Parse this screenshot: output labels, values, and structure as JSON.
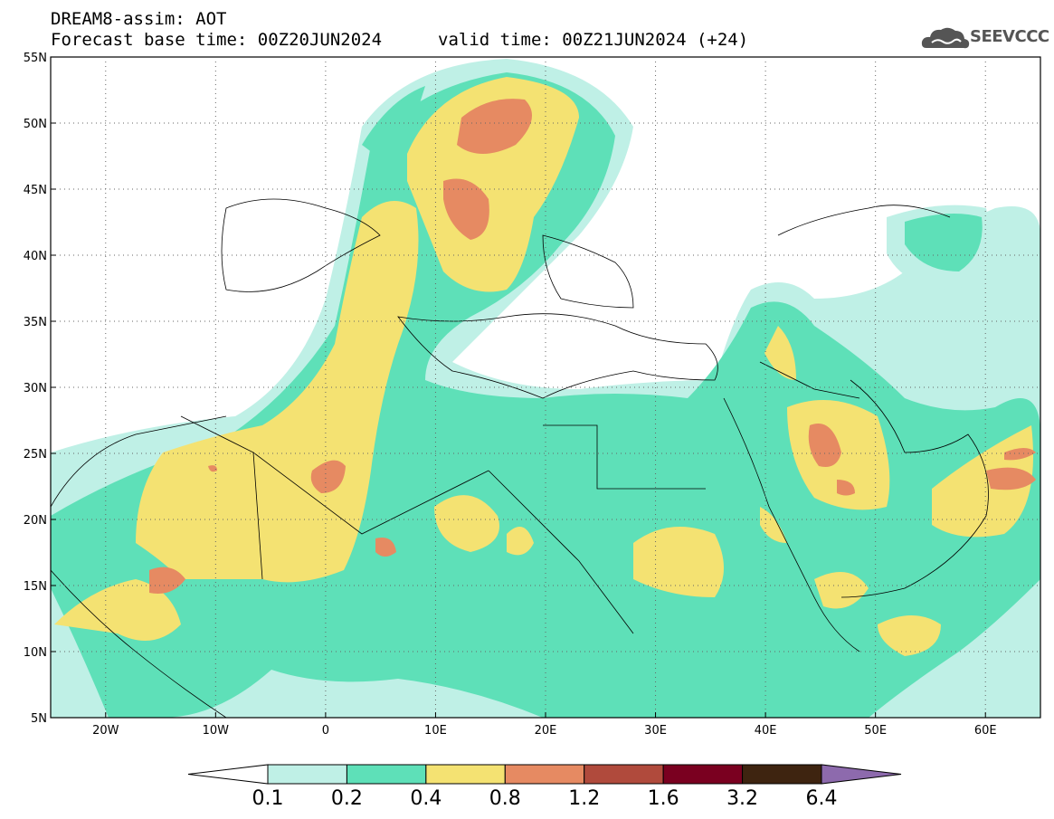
{
  "header": {
    "line1": "DREAM8-assim: AOT",
    "line2_left": "Forecast base time: 00Z20JUN2024",
    "line2_right": "valid time: 00Z21JUN2024 (+24)"
  },
  "logo": {
    "text": "SEEVCCC",
    "icon": "cloud-icon"
  },
  "map": {
    "variable": "AOT",
    "lon_range": [
      -25,
      65
    ],
    "lat_range": [
      5,
      55
    ],
    "x_ticks": [
      "20W",
      "10W",
      "0",
      "10E",
      "20E",
      "30E",
      "40E",
      "50E",
      "60E"
    ],
    "y_ticks": [
      "55N",
      "50N",
      "45N",
      "40N",
      "35N",
      "30N",
      "25N",
      "20N",
      "15N",
      "10N",
      "5N"
    ]
  },
  "colorbar": {
    "levels": [
      "0.1",
      "0.2",
      "0.4",
      "0.8",
      "1.2",
      "1.6",
      "3.2",
      "6.4"
    ],
    "colors": [
      "#ffffff",
      "#bff0e6",
      "#5ee0b8",
      "#f4e272",
      "#e68a62",
      "#b04a3c",
      "#7a0020",
      "#3e2410",
      "#8d6aad"
    ]
  }
}
